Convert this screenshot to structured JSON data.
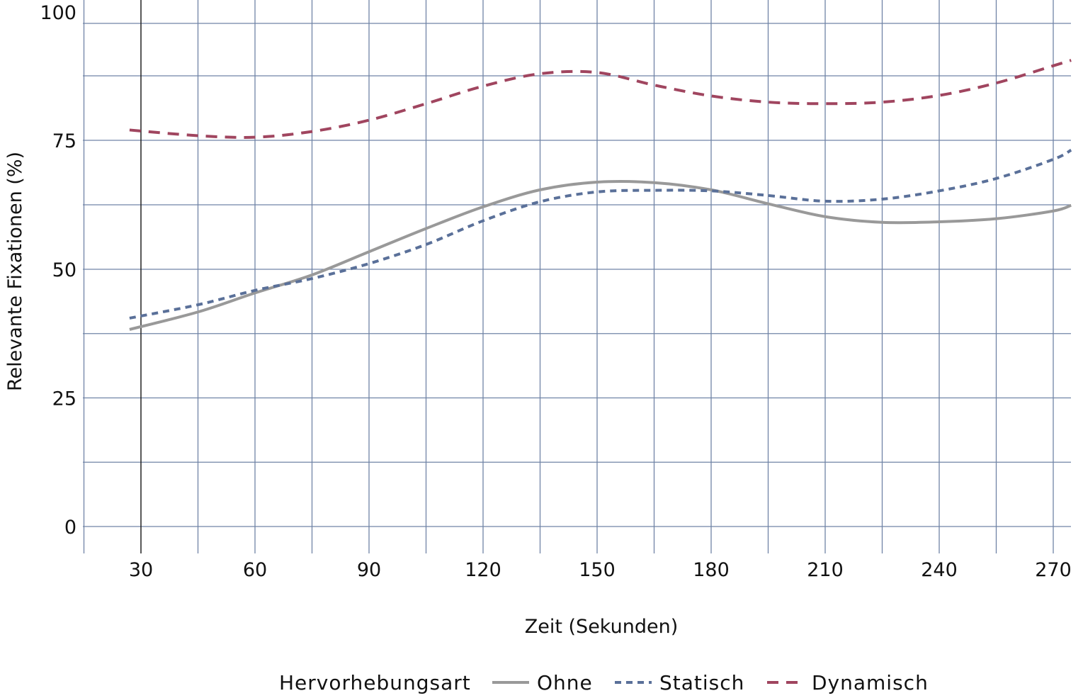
{
  "chart_data": {
    "type": "line",
    "title": "",
    "xlabel": "Zeit (Sekunden)",
    "ylabel": "Relevante Fixationen (%)",
    "xlim": [
      14.7,
      274.7
    ],
    "ylim": [
      0,
      100
    ],
    "xticks": [
      30,
      60,
      90,
      120,
      150,
      180,
      210,
      240,
      270
    ],
    "yticks": [
      0,
      25,
      50,
      75,
      100
    ],
    "grid": true,
    "legend": {
      "title": "Hervorhebungsart",
      "placement": "bottom"
    },
    "x": [
      27,
      45,
      60,
      75,
      90,
      105,
      120,
      135,
      150,
      165,
      180,
      195,
      210,
      225,
      240,
      255,
      270,
      274.7
    ],
    "series": [
      {
        "name": "Ohne",
        "color": "#999999",
        "dash": "solid",
        "values": [
          38.3,
          41.7,
          45.4,
          48.9,
          53.4,
          57.9,
          62.1,
          65.4,
          66.9,
          66.8,
          65.4,
          62.7,
          60.2,
          59.1,
          59.2,
          59.8,
          61.3,
          62.4
        ]
      },
      {
        "name": "Statisch",
        "color": "#5a7099",
        "dash": "short",
        "values": [
          40.5,
          43.1,
          45.9,
          48.2,
          51.1,
          54.8,
          59.4,
          63.1,
          65.0,
          65.3,
          65.2,
          64.3,
          63.2,
          63.6,
          65.2,
          67.6,
          71.3,
          73.1
        ]
      },
      {
        "name": "Dynamisch",
        "color": "#a0455f",
        "dash": "long",
        "values": [
          77.0,
          75.9,
          75.6,
          76.7,
          78.9,
          82.1,
          85.5,
          88.0,
          88.3,
          85.7,
          83.6,
          82.4,
          82.1,
          82.4,
          83.7,
          86.1,
          89.9,
          91.2
        ]
      }
    ]
  }
}
